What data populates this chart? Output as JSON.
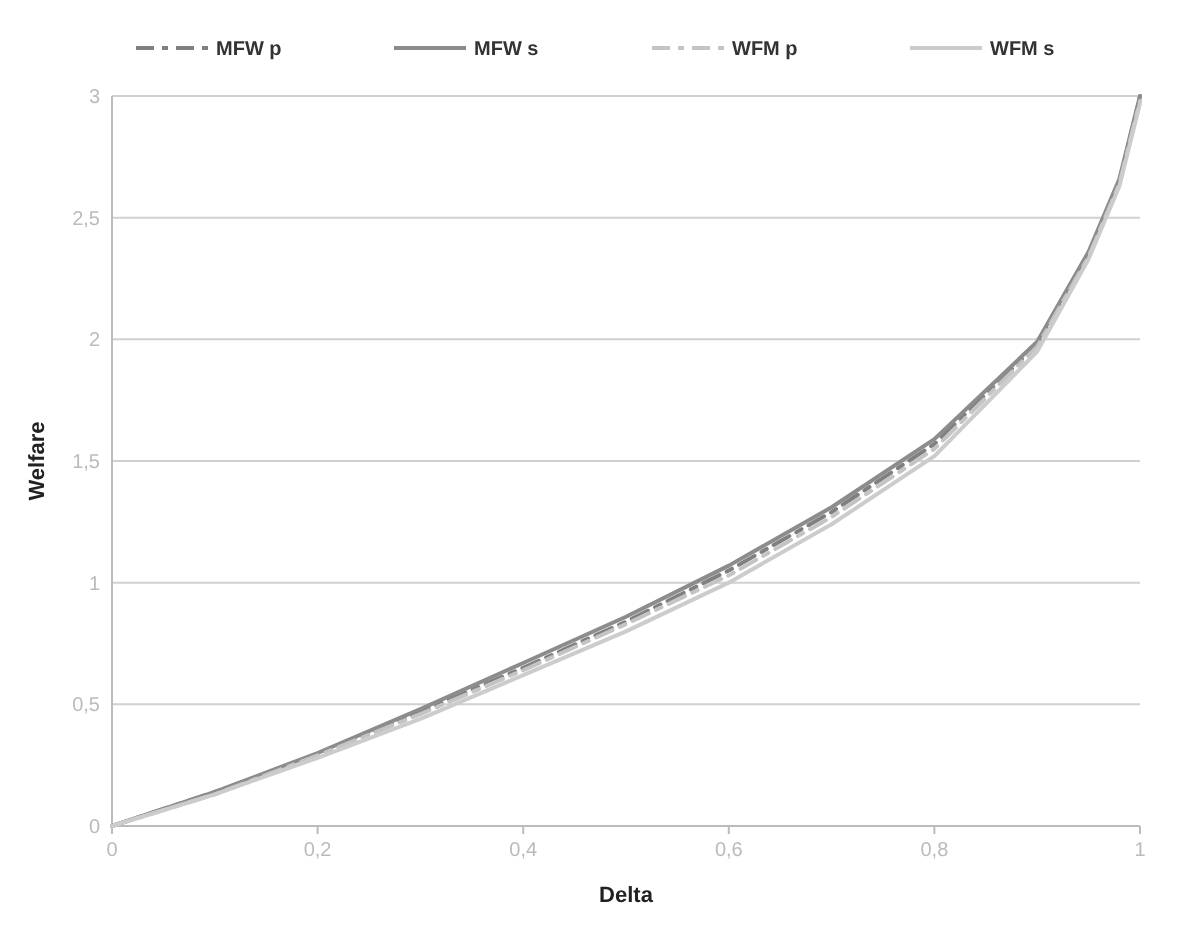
{
  "chart_data": {
    "type": "line",
    "xlabel": "Delta",
    "ylabel": "Welfare",
    "x": [
      0,
      0.1,
      0.2,
      0.3,
      0.4,
      0.5,
      0.6,
      0.7,
      0.8,
      0.9,
      0.95,
      0.98,
      1
    ],
    "series": [
      {
        "name": "MFW p",
        "color": "#808080",
        "line_style": "dashed",
        "values": [
          0,
          0.14,
          0.29,
          0.47,
          0.65,
          0.84,
          1.05,
          1.29,
          1.57,
          1.98,
          2.35,
          2.65,
          3.0
        ]
      },
      {
        "name": "MFW s",
        "color": "#8c8c8c",
        "line_style": "solid",
        "values": [
          0,
          0.14,
          0.3,
          0.48,
          0.67,
          0.86,
          1.07,
          1.31,
          1.59,
          1.99,
          2.36,
          2.66,
          3.0
        ]
      },
      {
        "name": "WFM p",
        "color": "#c4c4c4",
        "line_style": "dashed",
        "values": [
          0,
          0.13,
          0.29,
          0.46,
          0.64,
          0.83,
          1.03,
          1.27,
          1.55,
          1.97,
          2.34,
          2.64,
          2.98
        ]
      },
      {
        "name": "WFM s",
        "color": "#cccccc",
        "line_style": "solid",
        "values": [
          0,
          0.13,
          0.28,
          0.44,
          0.62,
          0.8,
          1.0,
          1.24,
          1.52,
          1.95,
          2.33,
          2.63,
          2.97
        ]
      }
    ],
    "xlim": [
      0,
      1
    ],
    "xticks": [
      0,
      {
        "value": 0.2,
        "label": "0,2"
      },
      {
        "value": 0.4,
        "label": "0,4"
      },
      {
        "value": 0.6,
        "label": "0,6"
      },
      {
        "value": 0.8,
        "label": "0,8"
      },
      1
    ],
    "ylim": [
      0,
      3
    ],
    "yticks": [
      0,
      {
        "value": 0.5,
        "label": "0,5"
      },
      1,
      {
        "value": 1.5,
        "label": "1,5"
      },
      2,
      {
        "value": 2.5,
        "label": "2,5"
      },
      3
    ],
    "grid": "y",
    "legend": "top"
  }
}
